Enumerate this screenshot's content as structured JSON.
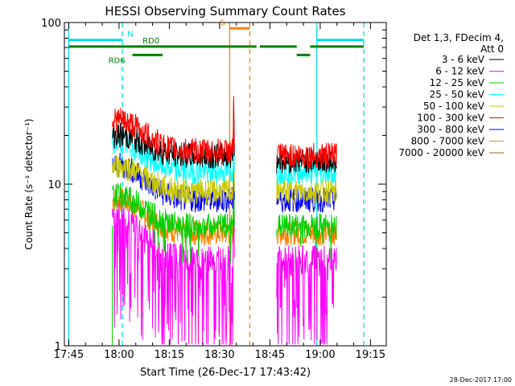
{
  "chart_data": {
    "type": "line",
    "title": "HESSI Observing Summary Count Rates",
    "xlabel": "Start Time (26-Dec-17 17:43:42)",
    "ylabel": "Count Rate (s⁻¹ detector⁻¹)",
    "timestamp": "28-Dec-2017 17:00",
    "x_axis": {
      "min_minutes_after_1745": -1.3,
      "max_minutes_after_1745": 94.7,
      "tick_values_min": [
        0,
        15,
        30,
        45,
        60,
        75,
        90
      ],
      "tick_labels": [
        "17:45",
        "18:00",
        "18:15",
        "18:30",
        "18:45",
        "19:00",
        "19:15"
      ]
    },
    "y_axis": {
      "scale": "log",
      "range": [
        1,
        100
      ],
      "tick_values": [
        1,
        10,
        100
      ],
      "tick_labels": [
        "1",
        "10",
        "100"
      ]
    },
    "legend": {
      "placement": "right",
      "header": [
        "Det 1,3, FDecim 4,",
        "Att 0"
      ],
      "entries": [
        {
          "label": "3 - 6 keV",
          "color": "#000000"
        },
        {
          "label": "6 - 12 keV",
          "color": "#ff00ff"
        },
        {
          "label": "12 - 25 keV",
          "color": "#00d000"
        },
        {
          "label": "25 - 50 keV",
          "color": "#00ffff"
        },
        {
          "label": "50 - 100 keV",
          "color": "#c8c800"
        },
        {
          "label": "100 - 300 keV",
          "color": "#ff0000"
        },
        {
          "label": "300 - 800 keV",
          "color": "#0000ff"
        },
        {
          "label": "800 - 7000 keV",
          "color": "#ff8000"
        },
        {
          "label": "7000 - 20000 keV",
          "color": "#a06000"
        }
      ]
    },
    "series_segments": [
      {
        "start_time": "17:58",
        "end_time": "18:34"
      },
      {
        "start_time": "18:47",
        "end_time": "19:05"
      }
    ],
    "series": [
      {
        "name": "3 - 6 keV",
        "color": "#000000",
        "seg1_baseline": 15,
        "seg1_peak": 20,
        "seg2_level": 14
      },
      {
        "name": "6 - 12 keV",
        "color": "#ff00ff",
        "seg1_baseline": 3.5,
        "seg1_peak": 6.5,
        "seg2_level": 3.5
      },
      {
        "name": "12 - 25 keV",
        "color": "#00d000",
        "seg1_baseline": 5.5,
        "seg1_peak": 8.5,
        "seg2_level": 5.5
      },
      {
        "name": "25 - 50 keV",
        "color": "#00ffff",
        "seg1_baseline": 12,
        "seg1_peak": 18,
        "seg2_level": 12
      },
      {
        "name": "50 - 100 keV",
        "color": "#c8c800",
        "seg1_baseline": 9,
        "seg1_peak": 13,
        "seg2_level": 9
      },
      {
        "name": "100 - 300 keV",
        "color": "#ff0000",
        "seg1_baseline": 16,
        "seg1_peak": 25,
        "seg2_level": 15
      },
      {
        "name": "300 - 800 keV",
        "color": "#0000ff",
        "seg1_baseline": 8,
        "seg1_peak": 13,
        "seg2_level": 8
      },
      {
        "name": "800 - 7000 keV",
        "color": "#ff8000",
        "seg1_baseline": 5,
        "seg1_peak": 8,
        "seg2_level": 5
      }
    ],
    "markers": [
      {
        "time": "17:45",
        "color": "#00e0e0",
        "style": "solid"
      },
      {
        "time": "18:01",
        "color": "#00e0e0",
        "style": "dashed"
      },
      {
        "time": "18:33",
        "color": "#ff8000",
        "style": "solid"
      },
      {
        "time": "18:39",
        "color": "#ff8000",
        "style": "dashed"
      },
      {
        "time": "18:59",
        "color": "#00e0e0",
        "style": "solid"
      },
      {
        "time": "19:13",
        "color": "#00e0e0",
        "style": "dashed"
      }
    ],
    "flag_bars": [
      {
        "label": "N",
        "color": "#00e0e0",
        "y_value": 78,
        "intervals": [
          [
            "17:45",
            "18:01"
          ],
          [
            "18:59",
            "19:13"
          ]
        ]
      },
      {
        "label": "S",
        "color": "#ff8000",
        "y_value": 92,
        "intervals": [
          [
            "18:33",
            "18:39"
          ]
        ]
      },
      {
        "label": "RD0",
        "color": "#008000",
        "y_value": 71,
        "intervals": [
          [
            "17:45",
            "18:41"
          ],
          [
            "18:42",
            "18:53"
          ],
          [
            "18:57",
            "19:13"
          ]
        ]
      },
      {
        "label": "RD6",
        "color": "#008000",
        "y_value": 63,
        "intervals": [
          [
            "18:04",
            "18:13"
          ],
          [
            "18:53",
            "18:57"
          ]
        ]
      }
    ]
  }
}
